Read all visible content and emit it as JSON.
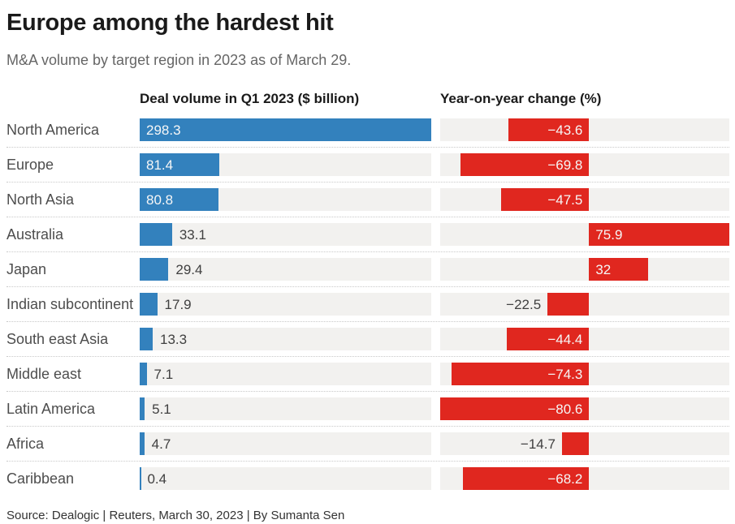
{
  "header": {
    "title": "Europe among the hardest hit",
    "subtitle": "M&A volume by target region in 2023 as of March 29."
  },
  "columns": {
    "left_header": "Deal volume in Q1 2023 ($ billion)",
    "right_header": "Year-on-year change (%)"
  },
  "footer": {
    "source": "Source: Dealogic | Reuters, March 30, 2023 | By Sumanta Sen"
  },
  "colors": {
    "volume_bar": "#3381bd",
    "change_bar": "#e0271f",
    "track": "#f2f1ef",
    "value_inside": "#f6f6f6",
    "value_outside": "#404040"
  },
  "chart_data": {
    "type": "bar",
    "orientation": "horizontal",
    "grid": false,
    "legend": "none",
    "categories": [
      "North America",
      "Europe",
      "North Asia",
      "Australia",
      "Japan",
      "Indian subcontinent",
      "South east Asia",
      "Middle east",
      "Latin America",
      "Africa",
      "Caribbean"
    ],
    "series": [
      {
        "name": "Deal volume in Q1 2023 ($ billion)",
        "values": [
          298.3,
          81.4,
          80.8,
          33.1,
          29.4,
          17.9,
          13.3,
          7.1,
          5.1,
          4.7,
          0.4
        ],
        "labels": [
          "298.3",
          "81.4",
          "80.8",
          "33.1",
          "29.4",
          "17.9",
          "13.3",
          "7.1",
          "5.1",
          "4.7",
          "0.4"
        ],
        "color": "#3381bd",
        "xlim": [
          0,
          298.3
        ]
      },
      {
        "name": "Year-on-year change (%)",
        "values": [
          -43.6,
          -69.8,
          -47.5,
          75.9,
          32,
          -22.5,
          -44.4,
          -74.3,
          -80.6,
          -14.7,
          -68.2
        ],
        "labels": [
          "−43.6",
          "−69.8",
          "−47.5",
          "75.9",
          "32",
          "−22.5",
          "−44.4",
          "−74.3",
          "−80.6",
          "−14.7",
          "−68.2"
        ],
        "color": "#e0271f",
        "xlim": [
          -80.6,
          75.9
        ]
      }
    ]
  }
}
